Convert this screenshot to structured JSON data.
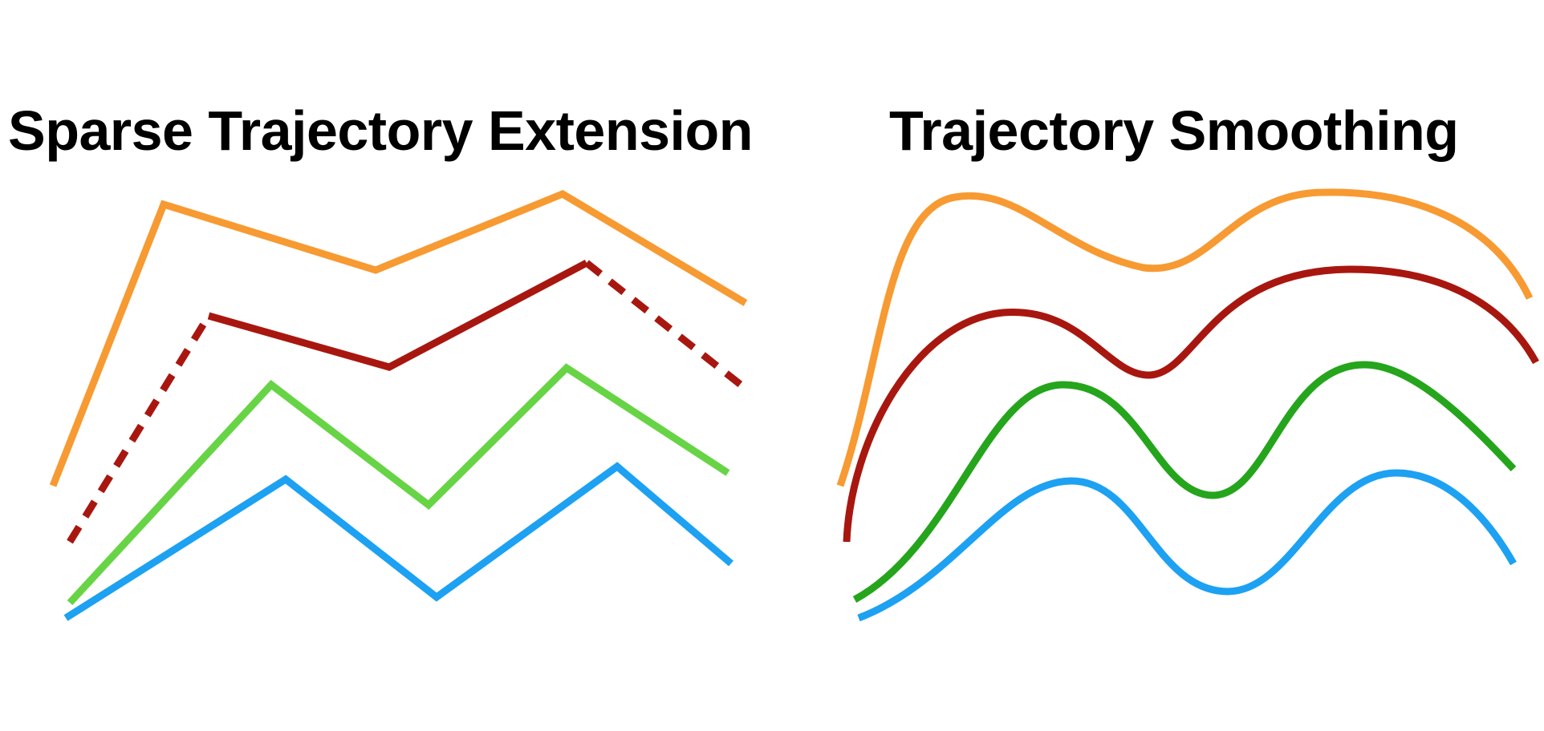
{
  "panels": {
    "left": {
      "title": "Sparse Trajectory Extension"
    },
    "right": {
      "title": "Trajectory Smoothing"
    }
  },
  "colors": {
    "orange": "#f79a32",
    "dark_red": "#a8170f",
    "light_green": "#67d445",
    "green": "#25a51c",
    "blue": "#1da1f2"
  },
  "trajectories": {
    "sparse": [
      {
        "name": "orange",
        "color": "orange",
        "style": "solid"
      },
      {
        "name": "dark-red",
        "color": "dark_red",
        "style": "solid-with-dashed-extensions"
      },
      {
        "name": "light-green",
        "color": "light_green",
        "style": "solid"
      },
      {
        "name": "blue",
        "color": "blue",
        "style": "solid"
      }
    ],
    "smooth": [
      {
        "name": "orange",
        "color": "orange",
        "style": "solid"
      },
      {
        "name": "dark-red",
        "color": "dark_red",
        "style": "solid"
      },
      {
        "name": "green",
        "color": "green",
        "style": "solid"
      },
      {
        "name": "blue",
        "color": "blue",
        "style": "solid"
      }
    ]
  }
}
